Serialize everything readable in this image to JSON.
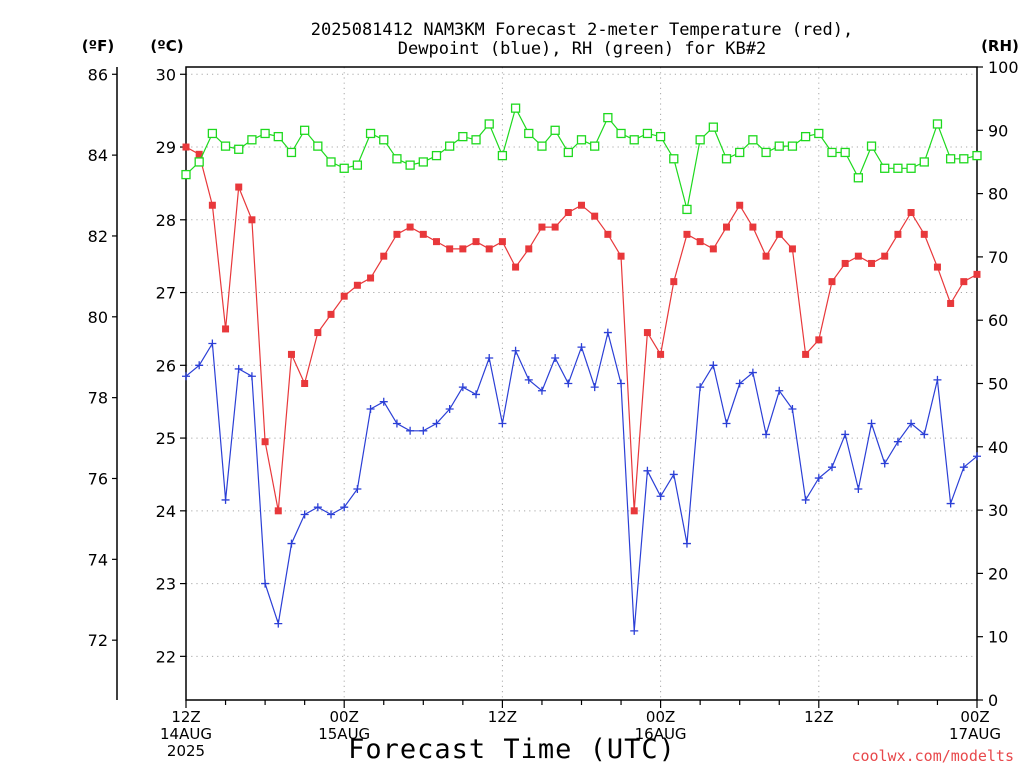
{
  "chart_data": {
    "type": "line",
    "title": [
      "2025081412 NAM3KM Forecast 2-meter Temperature (red),",
      "Dewpoint (blue), RH (green) for KB#2"
    ],
    "xlabel": "Forecast Time (UTC)",
    "credit": "coolwx.com/modelts",
    "left_f_axis": {
      "unit": "(ºF)",
      "ticks": [
        72,
        74,
        76,
        78,
        80,
        82,
        84,
        86
      ]
    },
    "left_c_axis": {
      "unit": "(ºC)",
      "ylim": [
        21.4,
        30.1
      ],
      "ticks": [
        22,
        23,
        24,
        25,
        26,
        27,
        28,
        29,
        30
      ]
    },
    "right_axis": {
      "unit": "(RH)",
      "ylim": [
        0,
        100
      ],
      "ticks": [
        0,
        10,
        20,
        30,
        40,
        50,
        60,
        70,
        80,
        90,
        100
      ]
    },
    "x_range_hours": [
      0,
      60
    ],
    "x_ticks": [
      {
        "hour": 0,
        "lines": [
          "12Z",
          "14AUG",
          "2025"
        ]
      },
      {
        "hour": 12,
        "lines": [
          "00Z",
          "15AUG"
        ]
      },
      {
        "hour": 24,
        "lines": [
          "12Z"
        ]
      },
      {
        "hour": 36,
        "lines": [
          "00Z",
          "16AUG"
        ]
      },
      {
        "hour": 48,
        "lines": [
          "12Z"
        ]
      },
      {
        "hour": 60,
        "lines": [
          "00Z",
          "17AUG"
        ]
      }
    ],
    "grid": true,
    "series": [
      {
        "name": "2-meter Temperature",
        "color": "#e8383b",
        "marker": "filled-square",
        "axis": "celsius",
        "values": [
          29.0,
          28.9,
          28.2,
          26.5,
          28.45,
          28.0,
          24.95,
          24.0,
          26.15,
          25.75,
          26.45,
          26.7,
          26.95,
          27.1,
          27.2,
          27.5,
          27.8,
          27.9,
          27.8,
          27.7,
          27.6,
          27.6,
          27.7,
          27.6,
          27.7,
          27.35,
          27.6,
          27.9,
          27.9,
          28.1,
          28.2,
          28.05,
          27.8,
          27.5,
          24.0,
          26.45,
          26.15,
          27.15,
          27.8,
          27.7,
          27.6,
          27.9,
          28.2,
          27.9,
          27.5,
          27.8,
          27.6,
          26.15,
          26.35,
          27.15,
          27.4,
          27.5,
          27.4,
          27.5,
          27.8,
          28.1,
          27.8,
          27.35,
          26.85,
          27.15,
          27.25
        ]
      },
      {
        "name": "Dewpoint",
        "color": "#2b3fd6",
        "marker": "plus",
        "axis": "celsius",
        "values": [
          25.85,
          26.0,
          26.3,
          24.15,
          25.95,
          25.85,
          23.0,
          22.45,
          23.55,
          23.95,
          24.05,
          23.95,
          24.05,
          24.3,
          25.4,
          25.5,
          25.2,
          25.1,
          25.1,
          25.2,
          25.4,
          25.7,
          25.6,
          26.1,
          25.2,
          26.2,
          25.8,
          25.65,
          26.1,
          25.75,
          26.25,
          25.7,
          26.45,
          25.75,
          22.35,
          24.55,
          24.2,
          24.5,
          23.55,
          25.7,
          26.0,
          25.2,
          25.75,
          25.9,
          25.05,
          25.65,
          25.4,
          24.15,
          24.45,
          24.6,
          25.05,
          24.3,
          25.2,
          24.65,
          24.95,
          25.2,
          25.05,
          25.8,
          24.1,
          24.6,
          24.75
        ]
      },
      {
        "name": "RH",
        "color": "#1ed91e",
        "marker": "open-square",
        "axis": "rh",
        "values": [
          83,
          85,
          89.5,
          87.5,
          87,
          88.5,
          89.5,
          89,
          86.5,
          90,
          87.5,
          85,
          84,
          84.5,
          89.5,
          88.5,
          85.5,
          84.5,
          85,
          86,
          87.5,
          89,
          88.5,
          91,
          86,
          93.5,
          89.5,
          87.5,
          90,
          86.5,
          88.5,
          87.5,
          92,
          89.5,
          88.5,
          89.5,
          89,
          85.5,
          77.5,
          88.5,
          90.5,
          85.5,
          86.5,
          88.5,
          86.5,
          87.5,
          87.5,
          89,
          89.5,
          86.5,
          86.5,
          82.5,
          87.5,
          84,
          84,
          84,
          85,
          91,
          85.5,
          85.5,
          86
        ]
      }
    ]
  }
}
